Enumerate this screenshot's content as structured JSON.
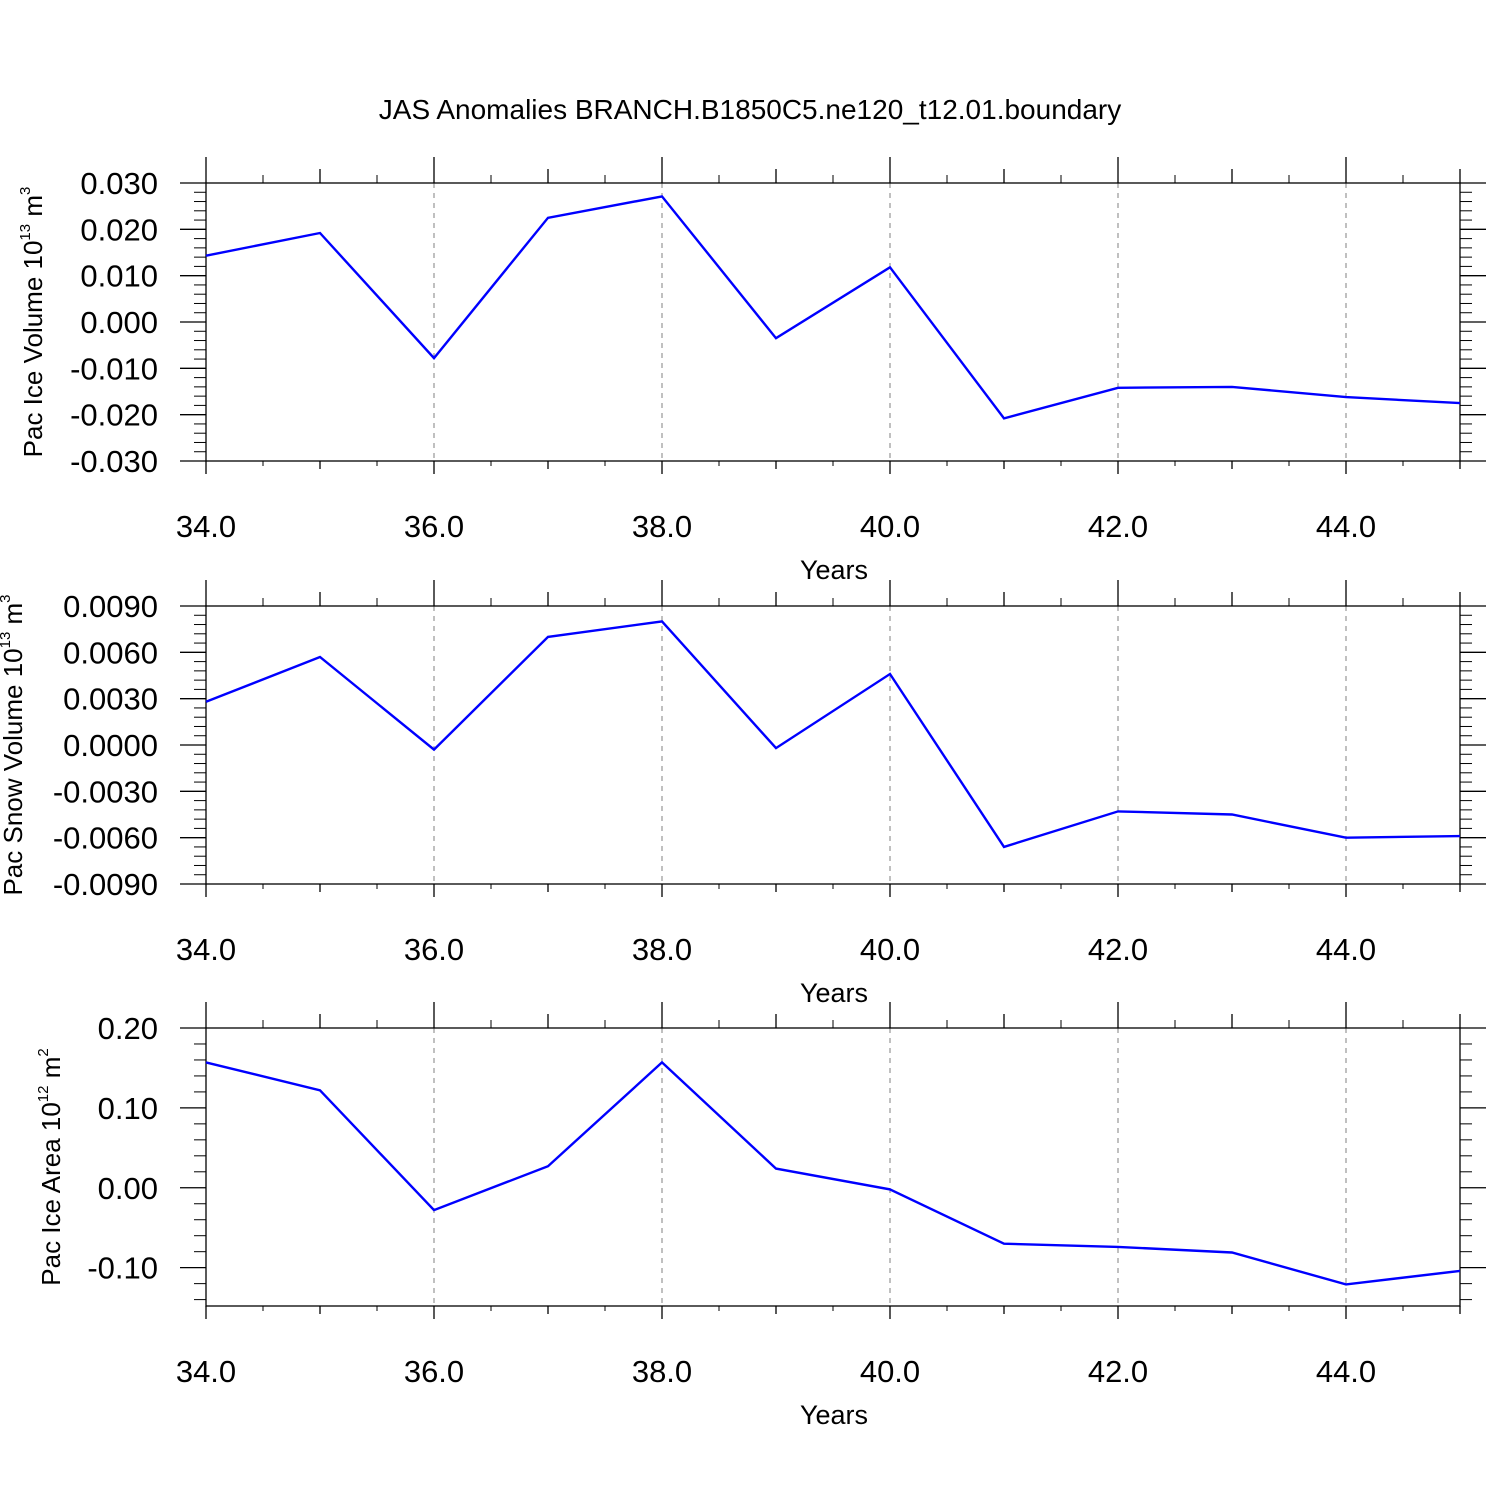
{
  "title": "JAS Anomalies BRANCH.B1850C5.ne120_t12.01.boundary",
  "colors": {
    "line": "#0000ff",
    "axis": "#000000",
    "grid": "#808080"
  },
  "chart_data": [
    {
      "type": "line",
      "title": "",
      "xlabel": "Years",
      "ylabel": {
        "text": "Pac Ice Volume 10",
        "exp": "13",
        "unit": " m",
        "unit_exp": "3"
      },
      "xlim": [
        34,
        45
      ],
      "ylim": [
        -0.03,
        0.03
      ],
      "x_ticks": [
        "34.0",
        "36.0",
        "38.0",
        "40.0",
        "42.0",
        "44.0"
      ],
      "x_tick_values": [
        34,
        36,
        38,
        40,
        42,
        44
      ],
      "y_ticks": [
        "0.030",
        "0.020",
        "0.010",
        "0.000",
        "-0.010",
        "-0.020",
        "-0.030"
      ],
      "y_tick_values": [
        0.03,
        0.02,
        0.01,
        0.0,
        -0.01,
        -0.02,
        -0.03
      ],
      "grid": "vertical dashed at major x ticks",
      "series": [
        {
          "x": [
            34,
            35,
            36,
            37,
            38,
            39,
            40,
            41,
            42,
            43,
            44,
            45
          ],
          "values": [
            0.0143,
            0.0192,
            -0.0078,
            0.0225,
            0.0271,
            -0.0035,
            0.0118,
            -0.0208,
            -0.0142,
            -0.014,
            -0.0162,
            -0.0175
          ]
        }
      ]
    },
    {
      "type": "line",
      "title": "",
      "xlabel": "Years",
      "ylabel": {
        "text": "Pac Snow Volume 10",
        "exp": "13",
        "unit": " m",
        "unit_exp": "3"
      },
      "xlim": [
        34,
        45
      ],
      "ylim": [
        -0.009,
        0.009
      ],
      "x_ticks": [
        "34.0",
        "36.0",
        "38.0",
        "40.0",
        "42.0",
        "44.0"
      ],
      "x_tick_values": [
        34,
        36,
        38,
        40,
        42,
        44
      ],
      "y_ticks": [
        "0.0090",
        "0.0060",
        "0.0030",
        "0.0000",
        "-0.0030",
        "-0.0060",
        "-0.0090"
      ],
      "y_tick_values": [
        0.009,
        0.006,
        0.003,
        0.0,
        -0.003,
        -0.006,
        -0.009
      ],
      "grid": "vertical dashed at major x ticks",
      "series": [
        {
          "x": [
            34,
            35,
            36,
            37,
            38,
            39,
            40,
            41,
            42,
            43,
            44,
            45
          ],
          "values": [
            0.0028,
            0.0057,
            -0.0003,
            0.007,
            0.008,
            -0.0002,
            0.0046,
            -0.0066,
            -0.0043,
            -0.0045,
            -0.006,
            -0.0059
          ]
        }
      ]
    },
    {
      "type": "line",
      "title": "",
      "xlabel": "Years",
      "ylabel": {
        "text": "Pac Ice Area 10",
        "exp": "12",
        "unit": " m",
        "unit_exp": "2"
      },
      "xlim": [
        34,
        45
      ],
      "ylim": [
        -0.148,
        0.2
      ],
      "x_ticks": [
        "34.0",
        "36.0",
        "38.0",
        "40.0",
        "42.0",
        "44.0"
      ],
      "x_tick_values": [
        34,
        36,
        38,
        40,
        42,
        44
      ],
      "y_ticks": [
        "0.20",
        "0.10",
        "0.00",
        "-0.10"
      ],
      "y_tick_values": [
        0.2,
        0.1,
        0.0,
        -0.1
      ],
      "grid": "vertical dashed at major x ticks",
      "series": [
        {
          "x": [
            34,
            35,
            36,
            37,
            38,
            39,
            40,
            41,
            42,
            43,
            44,
            45
          ],
          "values": [
            0.157,
            0.122,
            -0.028,
            0.027,
            0.157,
            0.024,
            -0.002,
            -0.07,
            -0.074,
            -0.081,
            -0.121,
            -0.104
          ]
        }
      ]
    }
  ]
}
